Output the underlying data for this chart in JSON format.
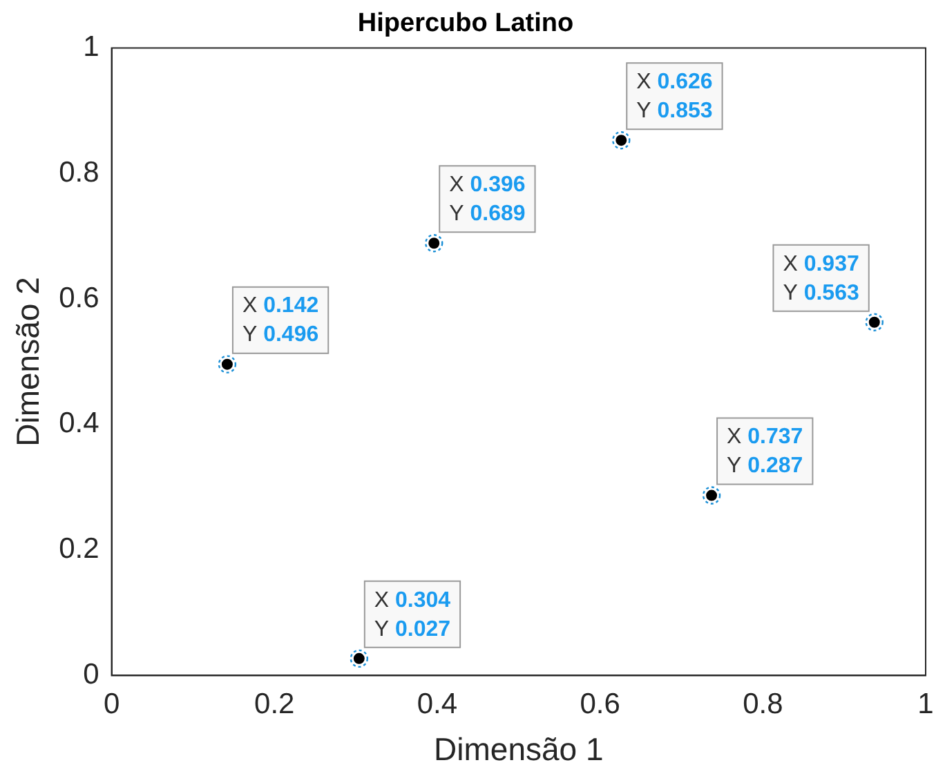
{
  "chart_data": {
    "type": "scatter",
    "title": "Hipercubo Latino",
    "xlabel": "Dimensão 1",
    "ylabel": "Dimensão 2",
    "x": [
      0.142,
      0.304,
      0.396,
      0.626,
      0.737,
      0.937
    ],
    "values": [
      0.496,
      0.027,
      0.689,
      0.853,
      0.287,
      0.563
    ],
    "color": "#000000",
    "marker": "circle",
    "annotations": [
      {
        "text": "X 0.142",
        "x": 0.142,
        "y": 0.496
      },
      {
        "text": "Y 0.496",
        "x": 0.142,
        "y": 0.496
      },
      {
        "text": "X 0.304",
        "x": 0.304,
        "y": 0.027
      },
      {
        "text": "Y 0.027",
        "x": 0.304,
        "y": 0.027
      },
      {
        "text": "X 0.396",
        "x": 0.396,
        "y": 0.689
      },
      {
        "text": "Y 0.689",
        "x": 0.396,
        "y": 0.689
      },
      {
        "text": "X 0.626",
        "x": 0.626,
        "y": 0.853
      },
      {
        "text": "Y 0.853",
        "x": 0.626,
        "y": 0.853
      },
      {
        "text": "X 0.737",
        "x": 0.737,
        "y": 0.287
      },
      {
        "text": "Y 0.287",
        "x": 0.737,
        "y": 0.287
      },
      {
        "text": "X 0.937",
        "x": 0.937,
        "y": 0.563
      },
      {
        "text": "Y 0.563",
        "x": 0.937,
        "y": 0.563
      }
    ],
    "xlim": [
      0,
      1
    ],
    "ylim": [
      0,
      1
    ],
    "xticks": [
      0,
      0.2,
      0.4,
      0.6,
      0.8,
      1
    ],
    "yticks": [
      0,
      0.2,
      0.4,
      0.6,
      0.8,
      1
    ],
    "grid": false,
    "legend": false
  }
}
